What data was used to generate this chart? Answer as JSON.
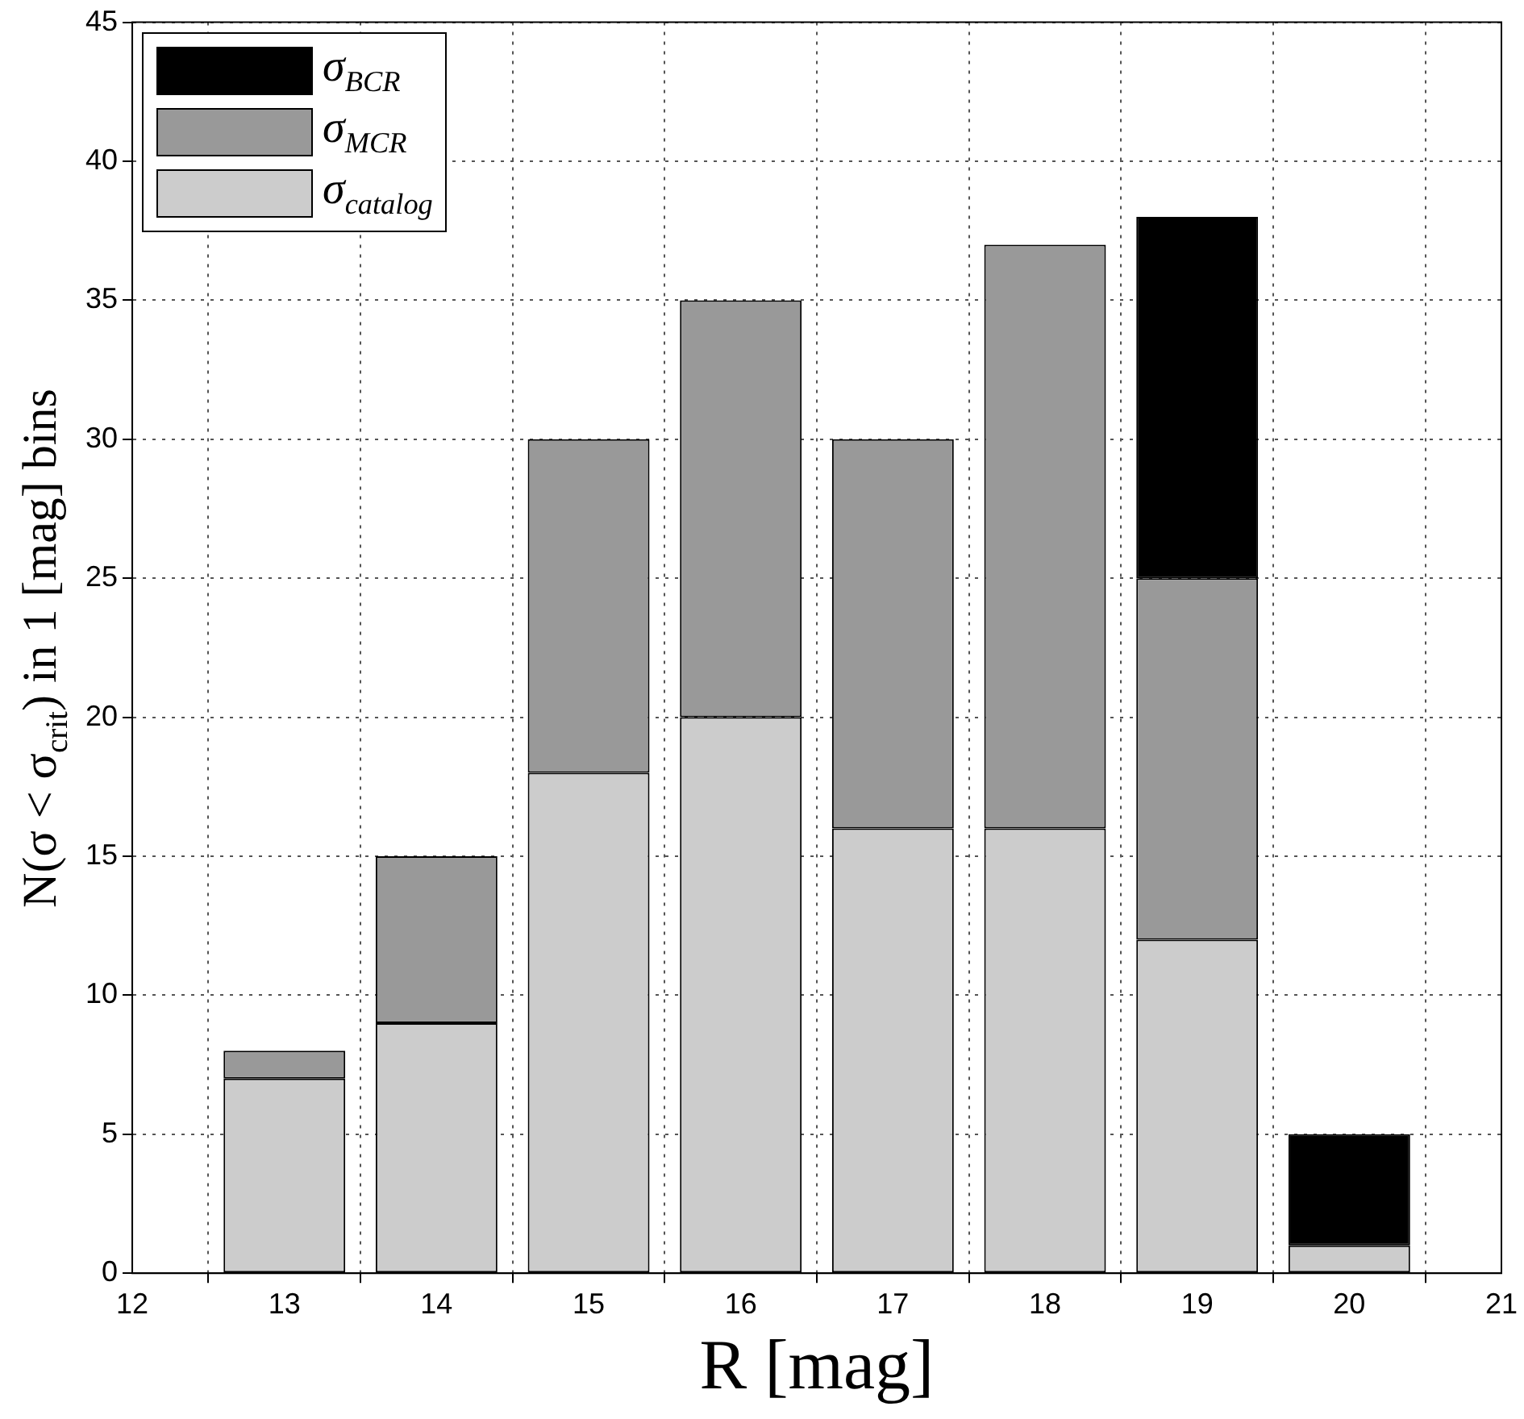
{
  "chart_data": {
    "type": "bar",
    "stacked": true,
    "xlabel": "R [mag]",
    "ylabel": "N(σ < σ$_{crit}$) in 1 [mag] bins",
    "x": [
      13,
      14,
      15,
      16,
      17,
      18,
      19,
      20
    ],
    "series": [
      {
        "name": "σ$_{catalog}$",
        "color": "#cccccc",
        "values": [
          7,
          9,
          18,
          20,
          16,
          16,
          12,
          1
        ]
      },
      {
        "name": "σ$_{MCR}$",
        "color": "#999999",
        "values": [
          1,
          6,
          12,
          15,
          14,
          21,
          13,
          0
        ]
      },
      {
        "name": "σ$_{BCR}$",
        "color": "#000000",
        "values": [
          0,
          0,
          0,
          0,
          0,
          0,
          13,
          4
        ]
      }
    ],
    "xlim": [
      12,
      21
    ],
    "xticks": [
      12,
      13,
      14,
      15,
      16,
      17,
      18,
      19,
      20,
      21
    ],
    "ylim": [
      0,
      45
    ],
    "yticks": [
      0,
      5,
      10,
      15,
      20,
      25,
      30,
      35,
      40,
      45
    ],
    "grid": true,
    "legend": "top left"
  }
}
